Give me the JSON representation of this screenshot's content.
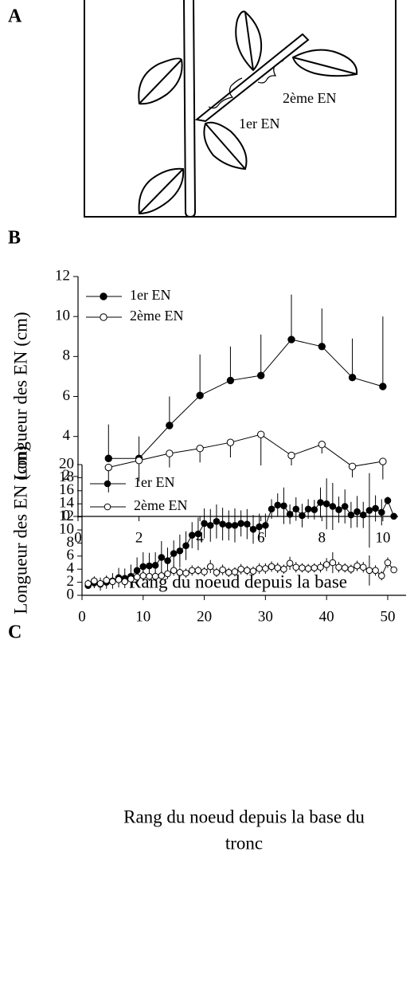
{
  "panel_a": {
    "label": "A",
    "annotations": [
      "2ème EN",
      "1er EN"
    ]
  },
  "chart_data": [
    {
      "type": "line",
      "label": "B",
      "xlabel": [
        "Rang du noeud depuis la base"
      ],
      "ylabel": "Longueur des EN (cm)",
      "xlim": [
        0,
        10.5
      ],
      "xticks": [
        0,
        2,
        4,
        6,
        8,
        10
      ],
      "ylim": [
        0,
        12
      ],
      "yticks": [
        0,
        2,
        4,
        6,
        8,
        10,
        12
      ],
      "x": [
        1,
        2,
        3,
        4,
        5,
        6,
        7,
        8,
        9,
        10
      ],
      "series": [
        {
          "name": "1er EN",
          "color": "#000000",
          "marker_fill": "#000000",
          "error_direction": "up",
          "values": [
            2.9,
            2.9,
            4.55,
            6.05,
            6.8,
            7.05,
            8.85,
            8.5,
            6.95,
            6.5
          ],
          "errors": [
            1.7,
            1.1,
            1.45,
            2.05,
            1.7,
            2.05,
            2.25,
            1.9,
            1.95,
            3.5
          ]
        },
        {
          "name": "2ème EN",
          "color": "#000000",
          "marker_fill": "#ffffff",
          "error_direction": "down",
          "values": [
            2.45,
            2.8,
            3.15,
            3.4,
            3.7,
            4.1,
            3.05,
            3.6,
            2.5,
            2.75
          ],
          "errors": [
            1.25,
            1.05,
            0.7,
            0.7,
            0.75,
            1.55,
            0.5,
            0.45,
            0.55,
            0.9
          ]
        }
      ]
    },
    {
      "type": "line",
      "label": "C",
      "xlabel": [
        "Rang du noeud depuis la base du",
        "tronc"
      ],
      "ylabel": "Longueur des EN (cm)",
      "xlim": [
        0,
        53
      ],
      "xticks": [
        0,
        10,
        20,
        30,
        40,
        50
      ],
      "ylim": [
        0,
        20
      ],
      "yticks": [
        0,
        2,
        4,
        6,
        8,
        10,
        12,
        14,
        16,
        18,
        20
      ],
      "x": [
        1,
        2,
        3,
        4,
        5,
        6,
        7,
        8,
        9,
        10,
        11,
        12,
        13,
        14,
        15,
        16,
        17,
        18,
        19,
        20,
        21,
        22,
        23,
        24,
        25,
        26,
        27,
        28,
        29,
        30,
        31,
        32,
        33,
        34,
        35,
        36,
        37,
        38,
        39,
        40,
        41,
        42,
        43,
        44,
        45,
        46,
        47,
        48,
        49,
        50,
        51
      ],
      "series": [
        {
          "name": "1er EN",
          "color": "#000000",
          "marker_fill": "#000000",
          "error_direction": "both",
          "values": [
            1.5,
            1.9,
            1.7,
            2.0,
            2.2,
            2.7,
            2.6,
            2.9,
            3.8,
            4.4,
            4.5,
            4.6,
            5.8,
            5.3,
            6.4,
            6.8,
            7.6,
            9.2,
            9.4,
            11.0,
            10.7,
            11.3,
            10.9,
            10.7,
            10.7,
            11.0,
            10.9,
            10.1,
            10.5,
            10.7,
            13.2,
            13.8,
            13.7,
            12.4,
            13.2,
            12.2,
            13.2,
            13.1,
            14.2,
            14.0,
            13.6,
            13.1,
            13.6,
            12.3,
            12.8,
            12.3,
            13.0,
            13.3,
            12.7,
            14.5,
            12.1
          ],
          "errors": [
            0.5,
            0.8,
            1.0,
            1.0,
            1.2,
            1.5,
            1.5,
            1.8,
            2.0,
            2.2,
            2.0,
            2.0,
            2.5,
            2.0,
            2.0,
            2.5,
            2.2,
            2.0,
            2.5,
            2.3,
            2.5,
            2.6,
            2.5,
            2.3,
            2.6,
            2.0,
            2.3,
            2.2,
            2.0,
            1.8,
            1.5,
            1.8,
            2.8,
            1.5,
            1.8,
            1.8,
            1.5,
            1.5,
            2.3,
            3.9,
            3.6,
            2.0,
            2.6,
            2.0,
            2.4,
            2.0,
            5.7,
            2.0,
            2.0,
            0.6,
            0
          ]
        },
        {
          "name": "2ème EN",
          "color": "#000000",
          "marker_fill": "#ffffff",
          "error_direction": "both",
          "values": [
            1.8,
            2.2,
            1.8,
            2.3,
            2.1,
            2.4,
            2.1,
            2.5,
            2.8,
            3.0,
            2.9,
            2.9,
            3.0,
            3.3,
            3.8,
            3.5,
            3.4,
            3.8,
            3.8,
            3.6,
            4.4,
            3.5,
            3.9,
            3.5,
            3.6,
            4.0,
            3.8,
            3.7,
            4.1,
            4.1,
            4.4,
            4.2,
            4.0,
            4.9,
            4.3,
            4.2,
            4.1,
            4.2,
            4.3,
            4.7,
            5.0,
            4.3,
            4.2,
            4.0,
            4.5,
            4.3,
            3.8,
            3.8,
            3.0,
            5.0,
            3.9
          ],
          "errors": [
            0.6,
            0.7,
            0.6,
            0.7,
            0.6,
            0.7,
            0.6,
            0.7,
            0.7,
            0.8,
            0.7,
            0.7,
            0.7,
            0.8,
            0.8,
            0.7,
            0.7,
            0.8,
            0.7,
            0.7,
            1.0,
            0.7,
            0.8,
            0.7,
            0.7,
            0.8,
            0.7,
            0.7,
            0.8,
            0.8,
            0.8,
            0.8,
            0.7,
            1.0,
            0.8,
            0.7,
            0.7,
            0.7,
            0.8,
            1.0,
            1.6,
            0.8,
            0.7,
            0.7,
            0.8,
            0.8,
            2.3,
            0.8,
            0.7,
            0.8,
            0.3
          ]
        }
      ]
    }
  ]
}
